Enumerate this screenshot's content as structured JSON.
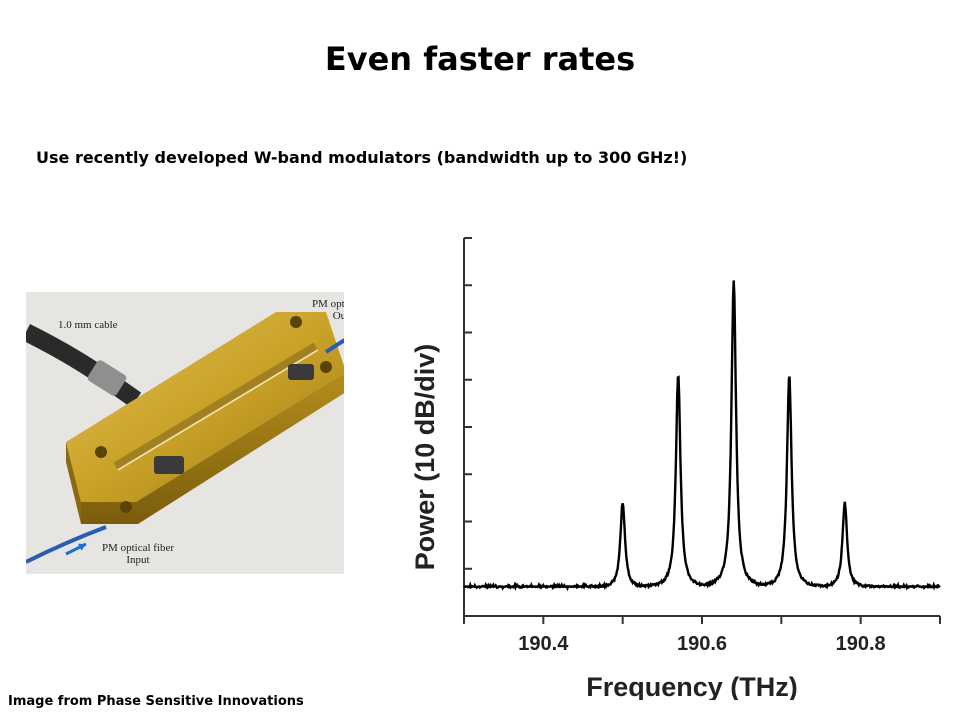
{
  "slide": {
    "title": "Even faster rates",
    "subtitle": "Use recently developed W-band modulators (bandwidth up to 300 GHz!)",
    "credit": "Image from Phase Sensitive Innovations"
  },
  "photo": {
    "cable_label": "1.0 mm cable",
    "output_label_line1": "PM optical fiber",
    "output_label_line2": "Output",
    "input_label_line1": "PM optical fiber",
    "input_label_line2": "Input",
    "arrow_color": "#1a6fd1",
    "block_color": "#c9a227"
  },
  "chart_data": {
    "type": "line",
    "xlabel": "Frequency (THz)",
    "ylabel": "Power (10 dB/div)",
    "x_ticks": [
      "190.4",
      "190.6",
      "190.8"
    ],
    "x_tick_values": [
      190.4,
      190.6,
      190.8
    ],
    "xlim": [
      190.3,
      190.9
    ],
    "ylim": [
      0,
      8
    ],
    "grid": false,
    "noise_floor": 0.6,
    "peaks": [
      {
        "x": 190.5,
        "y": 2.4
      },
      {
        "x": 190.57,
        "y": 5.1
      },
      {
        "x": 190.64,
        "y": 7.1
      },
      {
        "x": 190.71,
        "y": 5.1
      },
      {
        "x": 190.78,
        "y": 2.4
      }
    ],
    "line_color": "#000000"
  }
}
